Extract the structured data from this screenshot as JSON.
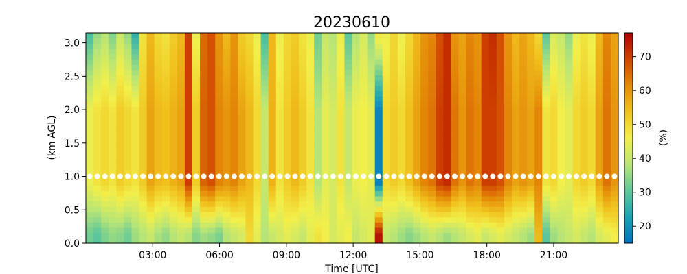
{
  "chart_data": {
    "type": "heatmap",
    "title": "20230610",
    "xlabel": "Time [UTC]",
    "ylabel": "(km AGL)",
    "colorbar_label": "(%)",
    "xlim_hours": [
      0.0,
      23.9
    ],
    "ylim": [
      0.0,
      3.15
    ],
    "x_ticks": [
      {
        "value": 3,
        "label": "03:00"
      },
      {
        "value": 6,
        "label": "06:00"
      },
      {
        "value": 9,
        "label": "09:00"
      },
      {
        "value": 12,
        "label": "12:00"
      },
      {
        "value": 15,
        "label": "15:00"
      },
      {
        "value": 18,
        "label": "18:00"
      },
      {
        "value": 21,
        "label": "21:00"
      }
    ],
    "y_ticks": [
      {
        "value": 0.0,
        "label": "0.0"
      },
      {
        "value": 0.5,
        "label": "0.5"
      },
      {
        "value": 1.0,
        "label": "1.0"
      },
      {
        "value": 1.5,
        "label": "1.5"
      },
      {
        "value": 2.0,
        "label": "2.0"
      },
      {
        "value": 2.5,
        "label": "2.5"
      },
      {
        "value": 3.0,
        "label": "3.0"
      }
    ],
    "colorbar": {
      "range": [
        15,
        77
      ],
      "ticks": [
        {
          "value": 20,
          "label": "20"
        },
        {
          "value": 30,
          "label": "30"
        },
        {
          "value": 40,
          "label": "40"
        },
        {
          "value": 50,
          "label": "50"
        },
        {
          "value": 60,
          "label": "60"
        },
        {
          "value": 70,
          "label": "70"
        }
      ],
      "colormap": [
        "#0072c0",
        "#1aa3b3",
        "#5fc79a",
        "#b9e576",
        "#f2ef4a",
        "#f0c21e",
        "#e48a08",
        "#d04600",
        "#b00000"
      ]
    },
    "marker_line": {
      "height_km": 1.0,
      "color": "#ffffff"
    },
    "time_hours": [
      0.2,
      0.54,
      0.88,
      1.22,
      1.56,
      1.9,
      2.24,
      2.58,
      2.92,
      3.26,
      3.6,
      3.94,
      4.28,
      4.62,
      4.96,
      5.3,
      5.64,
      5.98,
      6.32,
      6.66,
      7.0,
      7.34,
      7.68,
      8.02,
      8.36,
      8.7,
      9.04,
      9.38,
      9.72,
      10.06,
      10.4,
      10.74,
      11.08,
      11.42,
      11.76,
      12.1,
      12.44,
      12.78,
      13.12,
      13.46,
      13.8,
      14.14,
      14.48,
      14.82,
      15.16,
      15.5,
      15.84,
      16.18,
      16.52,
      16.86,
      17.2,
      17.54,
      17.88,
      18.22,
      18.56,
      18.9,
      19.24,
      19.58,
      19.92,
      20.26,
      20.6,
      20.94,
      21.28,
      21.62,
      21.96,
      22.3,
      22.64,
      22.98,
      23.32,
      23.66
    ],
    "top_profile": [
      28,
      35,
      38,
      33,
      40,
      35,
      25,
      48,
      55,
      50,
      48,
      52,
      55,
      70,
      45,
      65,
      68,
      60,
      55,
      60,
      52,
      50,
      45,
      28,
      55,
      45,
      50,
      52,
      48,
      45,
      32,
      40,
      38,
      45,
      30,
      38,
      42,
      35,
      48,
      45,
      50,
      45,
      50,
      55,
      60,
      62,
      68,
      72,
      60,
      58,
      62,
      60,
      70,
      72,
      68,
      60,
      55,
      58,
      55,
      50,
      30,
      42,
      40,
      35,
      45,
      48,
      45,
      55,
      62,
      58
    ],
    "mid_profile": [
      45,
      48,
      50,
      48,
      52,
      50,
      48,
      52,
      58,
      55,
      54,
      56,
      58,
      70,
      52,
      66,
      68,
      62,
      60,
      62,
      58,
      55,
      50,
      40,
      56,
      48,
      52,
      55,
      52,
      48,
      38,
      44,
      42,
      48,
      40,
      45,
      46,
      44,
      18,
      50,
      52,
      50,
      54,
      58,
      62,
      64,
      70,
      72,
      64,
      60,
      64,
      62,
      70,
      70,
      68,
      62,
      58,
      60,
      58,
      62,
      48,
      50,
      46,
      44,
      50,
      52,
      50,
      58,
      64,
      60
    ],
    "low_profile": [
      32,
      30,
      33,
      35,
      34,
      32,
      36,
      38,
      40,
      37,
      35,
      38,
      40,
      38,
      34,
      36,
      35,
      33,
      38,
      40,
      42,
      50,
      44,
      38,
      40,
      42,
      44,
      42,
      40,
      44,
      48,
      46,
      42,
      44,
      46,
      40,
      42,
      44,
      75,
      40,
      38,
      36,
      34,
      36,
      38,
      40,
      38,
      36,
      38,
      40,
      42,
      44,
      40,
      42,
      44,
      42,
      40,
      38,
      36,
      55,
      30,
      36,
      38,
      40,
      42,
      40,
      38,
      42,
      44,
      46
    ]
  }
}
